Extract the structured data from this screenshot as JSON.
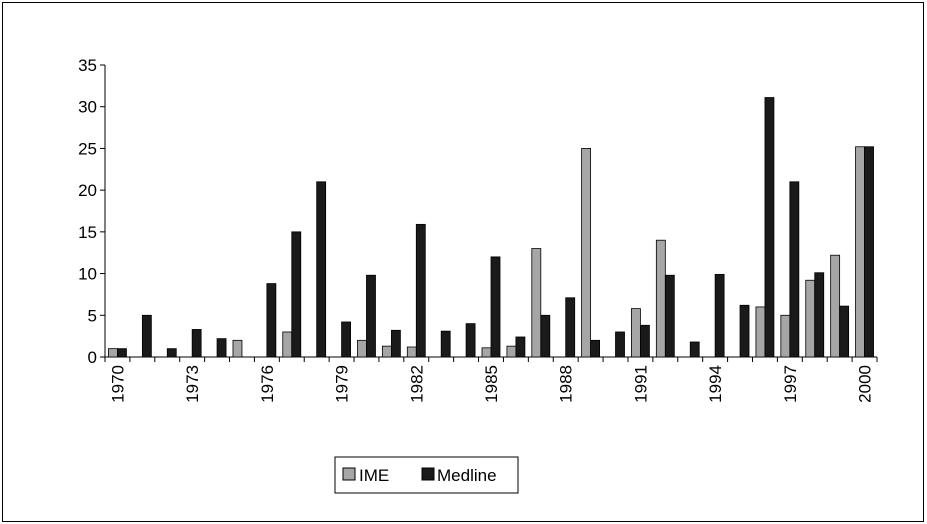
{
  "chart_data": {
    "type": "bar",
    "title": "",
    "xlabel": "",
    "ylabel": "",
    "ylim": [
      0,
      35
    ],
    "yticks": [
      0,
      5,
      10,
      15,
      20,
      25,
      30,
      35
    ],
    "grid": false,
    "legend_position": "bottom",
    "categories": [
      "1970",
      "1971",
      "1972",
      "1973",
      "1974",
      "1975",
      "1976",
      "1977",
      "1978",
      "1979",
      "1980",
      "1981",
      "1982",
      "1983",
      "1984",
      "1985",
      "1986",
      "1987",
      "1988",
      "1989",
      "1990",
      "1991",
      "1992",
      "1993",
      "1994",
      "1995",
      "1996",
      "1997",
      "1998",
      "1999",
      "2000"
    ],
    "xtick_labels": [
      "1970",
      "1973",
      "1976",
      "1979",
      "1982",
      "1985",
      "1988",
      "1991",
      "1994",
      "1997",
      "2000"
    ],
    "series": [
      {
        "name": "IME",
        "color": "#a6a6a6",
        "values": [
          1,
          0,
          0,
          0,
          0,
          2,
          0,
          3,
          0,
          0,
          2,
          1.3,
          1.2,
          0,
          0,
          1.1,
          1.3,
          13,
          0,
          25,
          0,
          5.8,
          14,
          0,
          0,
          0,
          6,
          5,
          9.2,
          12.2,
          25.2
        ]
      },
      {
        "name": "Medline",
        "color": "#1a1a1a",
        "values": [
          1,
          5,
          1,
          3.3,
          2.2,
          0,
          8.8,
          15,
          21,
          4.2,
          9.8,
          3.2,
          15.9,
          3.1,
          4,
          12,
          2.4,
          5,
          7.1,
          2,
          3,
          3.8,
          9.8,
          1.8,
          9.9,
          6.2,
          31.1,
          21,
          10.1,
          6.1,
          25.2
        ]
      }
    ]
  }
}
